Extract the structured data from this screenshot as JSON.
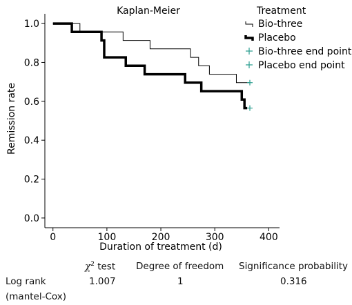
{
  "chart_data": {
    "type": "line",
    "title": "Kaplan-Meier",
    "xlabel": "Duration of treatment (d)",
    "ylabel": "Remission rate",
    "xlim": [
      -15,
      420
    ],
    "ylim": [
      -0.05,
      1.05
    ],
    "x_ticks": [
      0,
      100,
      200,
      300,
      400
    ],
    "y_ticks": [
      0.0,
      0.2,
      0.4,
      0.6,
      0.8,
      1.0
    ],
    "x_tick_labels": [
      "0",
      "100",
      "200",
      "300",
      "400"
    ],
    "y_tick_labels": [
      "0.0",
      "0.2",
      "0.4",
      "0.6",
      "0.8",
      "1.0"
    ],
    "legend": {
      "title": "Treatment",
      "position": "top-right",
      "entries": [
        "Bio-three",
        "Placebo",
        "Bio-three end point",
        "Placebo end point"
      ]
    },
    "series": [
      {
        "name": "Bio-three",
        "style": "thin",
        "color": "#000000",
        "times": [
          0,
          50,
          70,
          105,
          130,
          180,
          255,
          270,
          290,
          340,
          365
        ],
        "survival": [
          1.0,
          0.957,
          0.957,
          0.957,
          0.913,
          0.87,
          0.826,
          0.783,
          0.739,
          0.696,
          0.696
        ]
      },
      {
        "name": "Placebo",
        "style": "thick-dashed",
        "color": "#000000",
        "times": [
          0,
          35,
          90,
          95,
          135,
          170,
          245,
          275,
          350,
          355,
          360
        ],
        "survival": [
          1.0,
          0.957,
          0.913,
          0.826,
          0.783,
          0.739,
          0.696,
          0.652,
          0.609,
          0.565,
          0.565
        ]
      }
    ],
    "endpoints": [
      {
        "name": "Bio-three end point",
        "x": 365,
        "y": 0.696,
        "color": "#2a9d8f"
      },
      {
        "name": "Placebo end point",
        "x": 365,
        "y": 0.565,
        "color": "#2a9d8f"
      }
    ]
  },
  "stats_table": {
    "chi_square_header": "χ² test",
    "chi_symbol": "χ",
    "chi_superscript": "2",
    "chi_word": " test",
    "df_header": "Degree of freedom",
    "p_header": "Significance probability",
    "row_label": "Log rank",
    "row_label_2": "(mantel-Cox)",
    "chi_square_value": "1.007",
    "df_value": "1",
    "p_value": "0.316"
  }
}
